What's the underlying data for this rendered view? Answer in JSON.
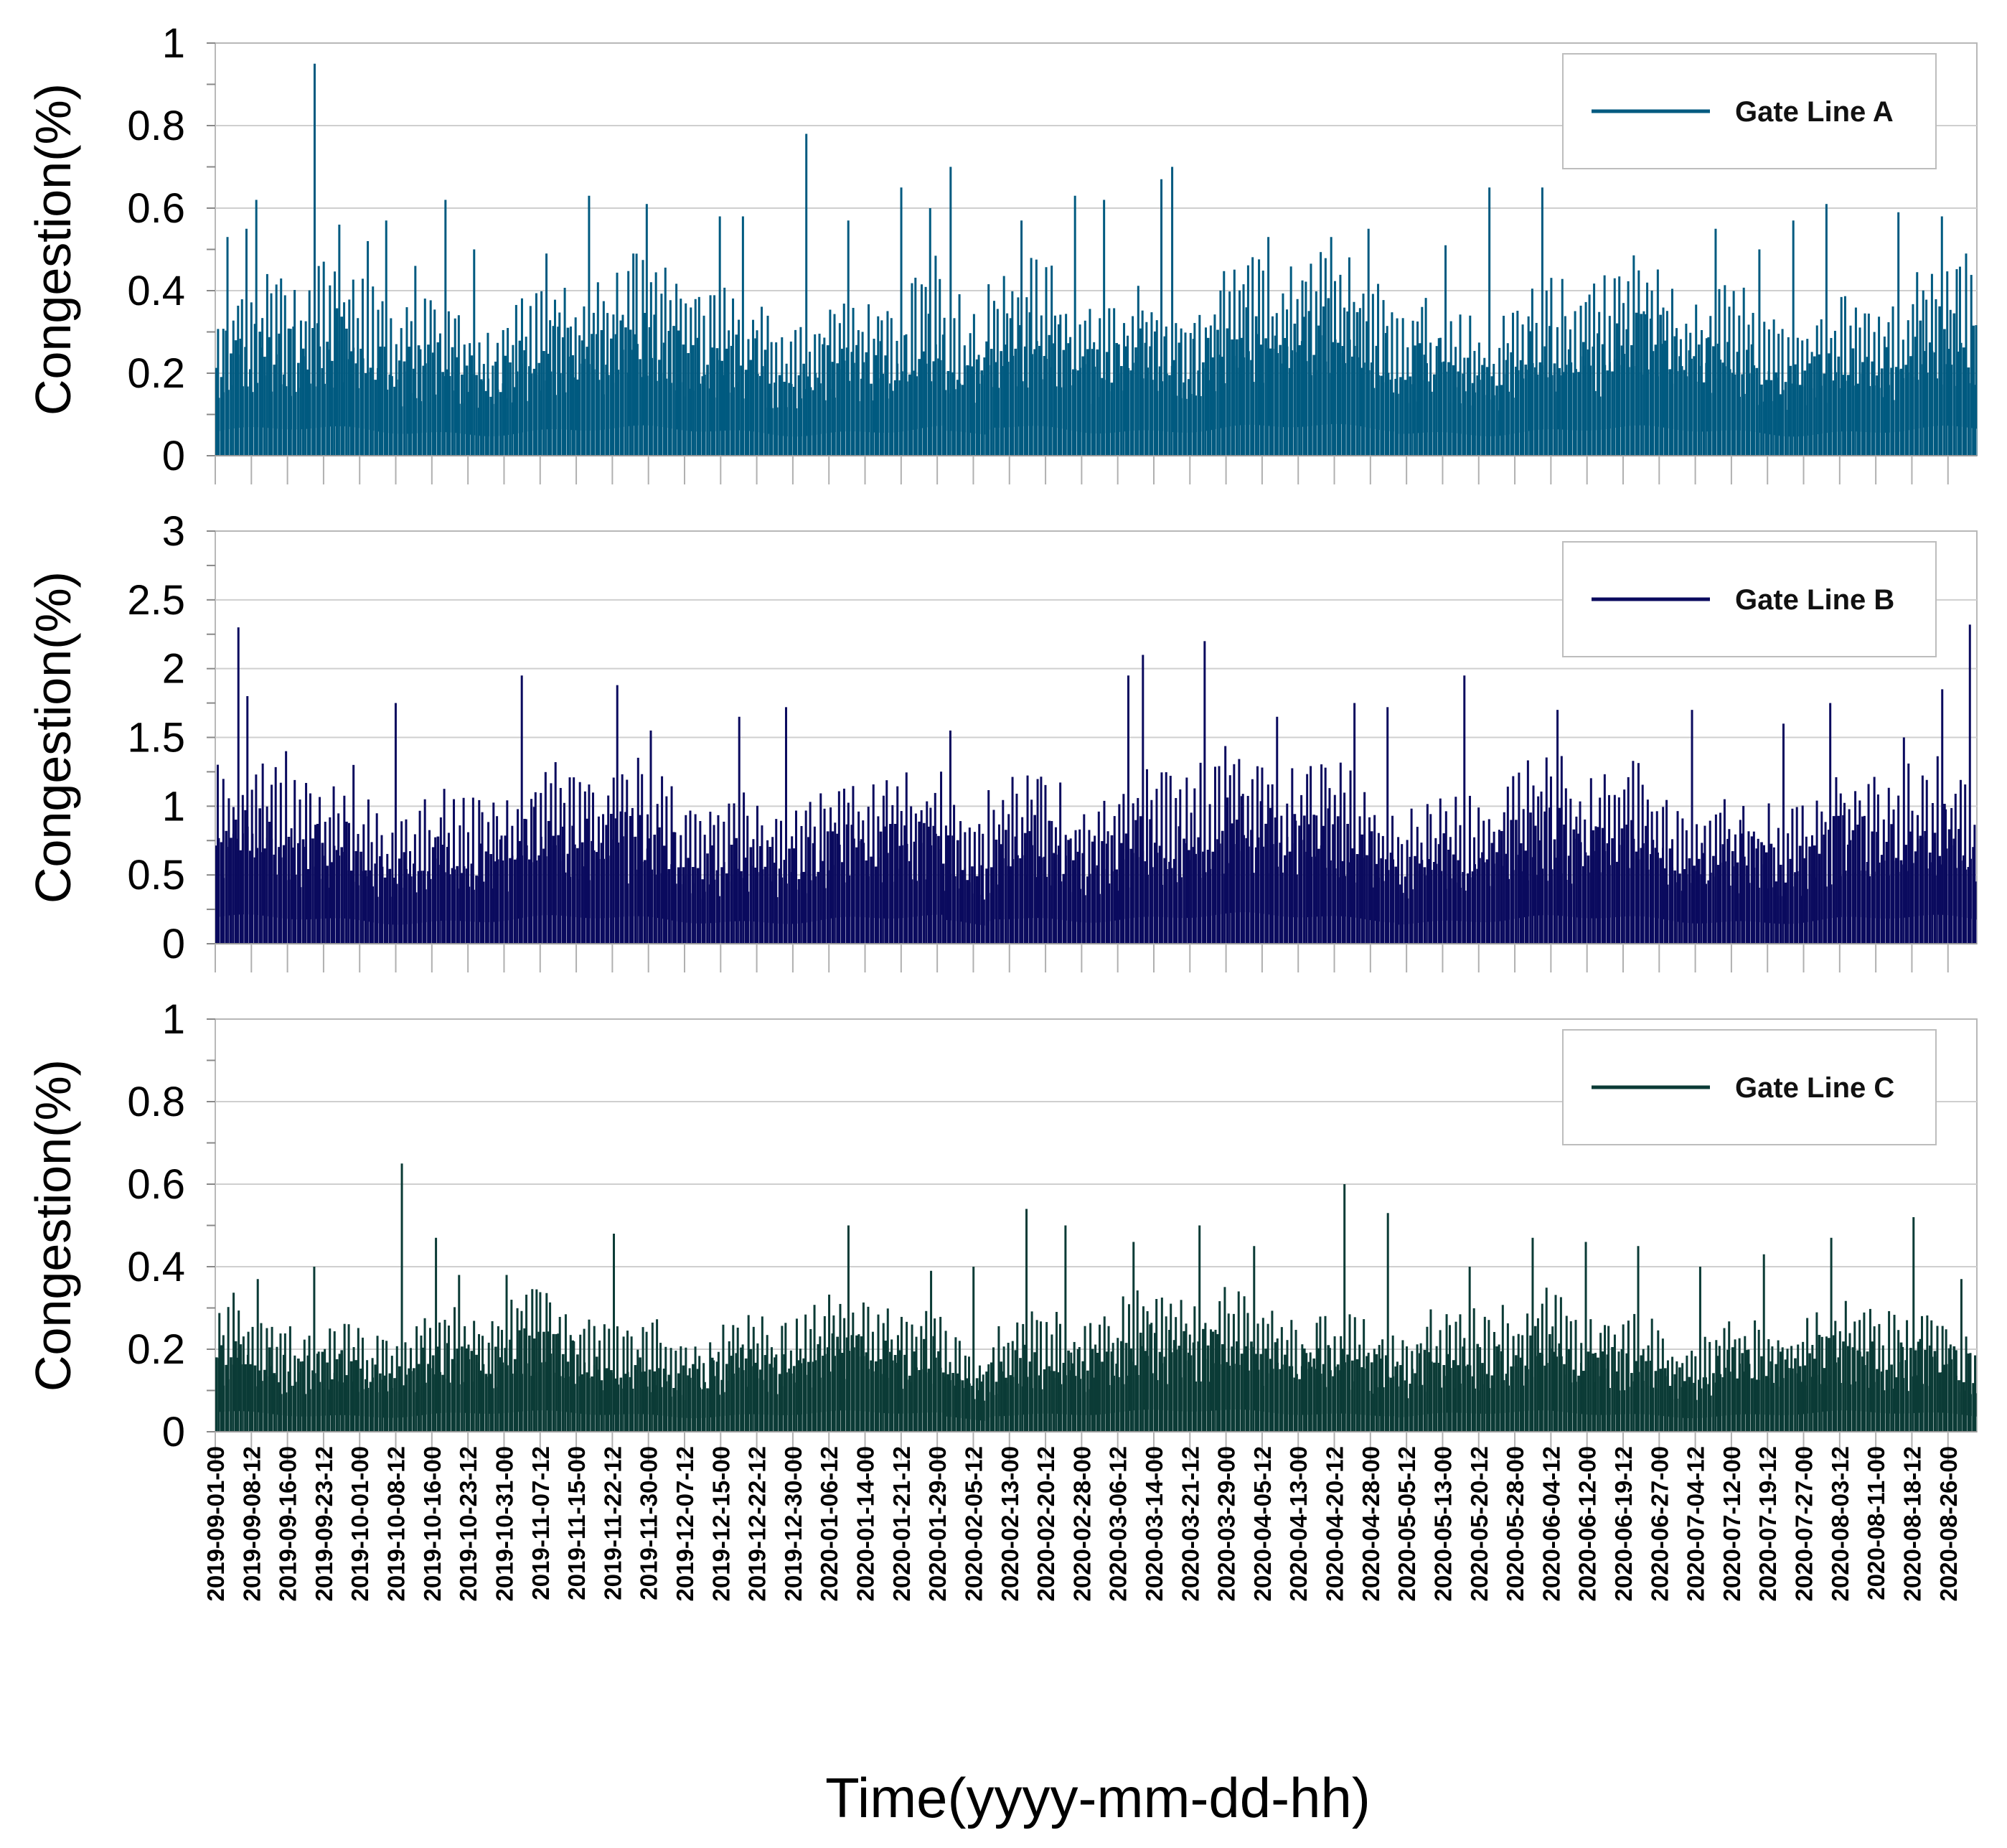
{
  "chart_data": [
    {
      "type": "bar",
      "title": "",
      "ylabel": "Congestion(%)",
      "xlabel": "",
      "ylim": [
        0,
        1
      ],
      "yticks": [
        "0",
        "0.2",
        "0.4",
        "0.6",
        "0.8",
        "1"
      ],
      "legend": {
        "label": "Gate Line A",
        "placement": "top-right"
      },
      "color": "#005A80",
      "base_level": 0.24,
      "base_amplitude": 0.1,
      "peaks": [
        {
          "day": 2,
          "value": 0.53
        },
        {
          "day": 6,
          "value": 0.55
        },
        {
          "day": 8,
          "value": 0.62
        },
        {
          "day": 20,
          "value": 0.95
        },
        {
          "day": 25,
          "value": 0.56
        },
        {
          "day": 31,
          "value": 0.52
        },
        {
          "day": 35,
          "value": 0.57
        },
        {
          "day": 41,
          "value": 0.46
        },
        {
          "day": 47,
          "value": 0.62
        },
        {
          "day": 53,
          "value": 0.5
        },
        {
          "day": 68,
          "value": 0.49
        },
        {
          "day": 77,
          "value": 0.63
        },
        {
          "day": 86,
          "value": 0.49
        },
        {
          "day": 89,
          "value": 0.61
        },
        {
          "day": 104,
          "value": 0.58
        },
        {
          "day": 109,
          "value": 0.58
        },
        {
          "day": 122,
          "value": 0.78
        },
        {
          "day": 131,
          "value": 0.57
        },
        {
          "day": 142,
          "value": 0.65
        },
        {
          "day": 148,
          "value": 0.6
        },
        {
          "day": 152,
          "value": 0.7
        },
        {
          "day": 167,
          "value": 0.57
        },
        {
          "day": 178,
          "value": 0.63
        },
        {
          "day": 184,
          "value": 0.62
        },
        {
          "day": 196,
          "value": 0.67
        },
        {
          "day": 198,
          "value": 0.7
        },
        {
          "day": 218,
          "value": 0.53
        },
        {
          "day": 231,
          "value": 0.53
        },
        {
          "day": 239,
          "value": 0.55
        },
        {
          "day": 255,
          "value": 0.51
        },
        {
          "day": 264,
          "value": 0.65
        },
        {
          "day": 275,
          "value": 0.65
        },
        {
          "day": 290,
          "value": 0.43
        },
        {
          "day": 311,
          "value": 0.55
        },
        {
          "day": 320,
          "value": 0.5
        },
        {
          "day": 327,
          "value": 0.57
        },
        {
          "day": 334,
          "value": 0.61
        },
        {
          "day": 349,
          "value": 0.59
        },
        {
          "day": 358,
          "value": 0.58
        },
        {
          "day": 363,
          "value": 0.49
        }
      ]
    },
    {
      "type": "bar",
      "title": "",
      "ylabel": "Congestion(%)",
      "xlabel": "",
      "ylim": [
        0,
        3
      ],
      "yticks": [
        "0",
        "0.5",
        "1",
        "1.5",
        "2",
        "2.5",
        "3"
      ],
      "legend": {
        "label": "Gate Line B",
        "placement": "top-right"
      },
      "color": "#0A0A5E",
      "base_level": 0.7,
      "base_amplitude": 0.28,
      "peaks": [
        {
          "day": 4,
          "value": 2.3
        },
        {
          "day": 6,
          "value": 1.8
        },
        {
          "day": 14,
          "value": 1.4
        },
        {
          "day": 28,
          "value": 1.3
        },
        {
          "day": 37,
          "value": 1.75
        },
        {
          "day": 63,
          "value": 1.95
        },
        {
          "day": 83,
          "value": 1.88
        },
        {
          "day": 90,
          "value": 1.55
        },
        {
          "day": 108,
          "value": 1.65
        },
        {
          "day": 118,
          "value": 1.72
        },
        {
          "day": 152,
          "value": 1.55
        },
        {
          "day": 189,
          "value": 1.95
        },
        {
          "day": 192,
          "value": 2.1
        },
        {
          "day": 205,
          "value": 2.2
        },
        {
          "day": 220,
          "value": 1.65
        },
        {
          "day": 236,
          "value": 1.75
        },
        {
          "day": 243,
          "value": 1.72
        },
        {
          "day": 259,
          "value": 1.95
        },
        {
          "day": 278,
          "value": 1.7
        },
        {
          "day": 306,
          "value": 1.7
        },
        {
          "day": 325,
          "value": 1.6
        },
        {
          "day": 335,
          "value": 1.75
        },
        {
          "day": 350,
          "value": 1.5
        },
        {
          "day": 358,
          "value": 1.85
        },
        {
          "day": 364,
          "value": 2.32
        }
      ]
    },
    {
      "type": "bar",
      "title": "",
      "ylabel": "Congestion(%)",
      "xlabel": "Time(yyyy-mm-dd-hh)",
      "ylim": [
        0,
        1
      ],
      "yticks": [
        "0",
        "0.2",
        "0.4",
        "0.6",
        "0.8",
        "1"
      ],
      "legend": {
        "label": "Gate Line C",
        "placement": "top-right"
      },
      "color": "#0B3B36",
      "base_level": 0.17,
      "base_amplitude": 0.07,
      "peaks": [
        {
          "day": 8,
          "value": 0.37
        },
        {
          "day": 20,
          "value": 0.4
        },
        {
          "day": 38,
          "value": 0.65
        },
        {
          "day": 45,
          "value": 0.47
        },
        {
          "day": 50,
          "value": 0.38
        },
        {
          "day": 60,
          "value": 0.38
        },
        {
          "day": 82,
          "value": 0.48
        },
        {
          "day": 131,
          "value": 0.5
        },
        {
          "day": 148,
          "value": 0.39
        },
        {
          "day": 157,
          "value": 0.4
        },
        {
          "day": 168,
          "value": 0.54
        },
        {
          "day": 176,
          "value": 0.5
        },
        {
          "day": 190,
          "value": 0.46
        },
        {
          "day": 204,
          "value": 0.5
        },
        {
          "day": 215,
          "value": 0.45
        },
        {
          "day": 234,
          "value": 0.6
        },
        {
          "day": 243,
          "value": 0.53
        },
        {
          "day": 260,
          "value": 0.4
        },
        {
          "day": 273,
          "value": 0.47
        },
        {
          "day": 284,
          "value": 0.46
        },
        {
          "day": 295,
          "value": 0.45
        },
        {
          "day": 308,
          "value": 0.4
        },
        {
          "day": 321,
          "value": 0.43
        },
        {
          "day": 335,
          "value": 0.47
        },
        {
          "day": 352,
          "value": 0.52
        },
        {
          "day": 362,
          "value": 0.37
        }
      ]
    }
  ],
  "x_axis": {
    "label": "Time(yyyy-mm-dd-hh)",
    "start_date": "2019-09-01",
    "total_days": 366,
    "ticks": [
      "2019-09-01-00",
      "2019-09-08-12",
      "2019-09-16-00",
      "2019-09-23-12",
      "2019-10-01-00",
      "2019-10-08-12",
      "2019-10-16-00",
      "2019-10-23-12",
      "2019-10-31-00",
      "2019-11-07-12",
      "2019-11-15-00",
      "2019-11-22-12",
      "2019-11-30-00",
      "2019-12-07-12",
      "2019-12-15-00",
      "2019-12-22-12",
      "2019-12-30-00",
      "2020-01-06-12",
      "2020-01-14-00",
      "2020-01-21-12",
      "2020-01-29-00",
      "2020-02-05-12",
      "2020-02-13-00",
      "2020-02-20-12",
      "2020-02-28-00",
      "2020-03-06-12",
      "2020-03-14-00",
      "2020-03-21-12",
      "2020-03-29-00",
      "2020-04-05-12",
      "2020-04-13-00",
      "2020-04-20-12",
      "2020-04-28-00",
      "2020-05-05-12",
      "2020-05-13-00",
      "2020-05-20-12",
      "2020-05-28-00",
      "2020-06-04-12",
      "2020-06-12-00",
      "2020-06-19-12",
      "2020-06-27-00",
      "2020-07-04-12",
      "2020-07-12-00",
      "2020-07-19-12",
      "2020-07-27-00",
      "2020-08-03-12",
      "2020-08-11-00",
      "2020-08-18-12",
      "2020-08-26-00"
    ]
  }
}
